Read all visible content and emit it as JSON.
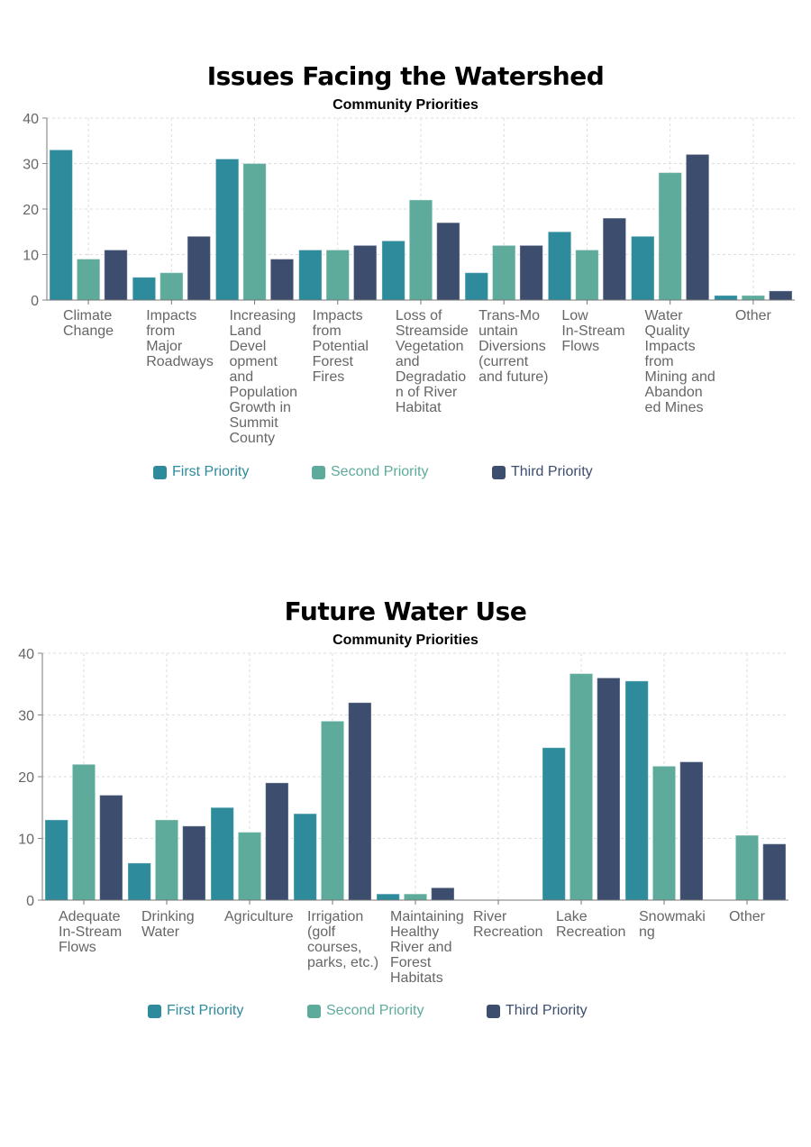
{
  "colors": {
    "first": "#2e8b9c",
    "second": "#5eab9c",
    "third": "#3c4d6e"
  },
  "chart_data": [
    {
      "type": "bar",
      "title": "Issues Facing the Watershed",
      "subtitle": "Community Priorities",
      "xlabel": "",
      "ylabel": "",
      "ylim": [
        0,
        40
      ],
      "yticks": [
        "0",
        "10",
        "20",
        "30",
        "40"
      ],
      "grid": true,
      "legend": "bottom",
      "categories": [
        "Climate\nChange",
        "Impacts\nfrom\nMajor\nRoadways",
        "Increasing\nLand\nDevel\nopment\nand\nPopulation\nGrowth in\nSummit\nCounty",
        "Impacts\nfrom\nPotential\nForest\nFires",
        "Loss of\nStreamside\nVegetation\nand\nDegradatio\nn of River\nHabitat",
        "Trans-Mo\nuntain\nDiversions\n(current\nand future)",
        "Low\nIn-Stream\nFlows",
        "Water\nQuality\nImpacts\nfrom\nMining and\nAbandon\ned Mines",
        "Other"
      ],
      "series": [
        {
          "name": "First Priority",
          "color_key": "first",
          "values": [
            33,
            5,
            31,
            11,
            13,
            6,
            15,
            14,
            1
          ]
        },
        {
          "name": "Second Priority",
          "color_key": "second",
          "values": [
            9,
            6,
            30,
            11,
            22,
            12,
            11,
            28,
            1
          ]
        },
        {
          "name": "Third Priority",
          "color_key": "third",
          "values": [
            11,
            14,
            9,
            12,
            17,
            12,
            18,
            32,
            2
          ]
        }
      ]
    },
    {
      "type": "bar",
      "title": "Future Water Use",
      "subtitle": "Community Priorities",
      "xlabel": "",
      "ylabel": "",
      "ylim": [
        0,
        40
      ],
      "yticks": [
        "0",
        "10",
        "20",
        "30",
        "40"
      ],
      "grid": true,
      "legend": "bottom",
      "categories": [
        "Adequate\nIn-Stream\nFlows",
        "Drinking\nWater",
        "Agriculture",
        "Irrigation\n(golf\ncourses,\nparks, etc.)",
        "Maintaining\nHealthy\nRiver and\nForest\nHabitats",
        "River\nRecreation",
        "Lake\nRecreation",
        "Snowmaki\nng",
        "Other"
      ],
      "series": [
        {
          "name": "First Priority",
          "color_key": "first",
          "values": [
            13,
            6,
            15,
            14,
            1,
            0,
            24.7,
            35.5,
            0
          ]
        },
        {
          "name": "Second Priority",
          "color_key": "second",
          "values": [
            22,
            13,
            11,
            29,
            1,
            0,
            36.7,
            21.7,
            10.5
          ]
        },
        {
          "name": "Third Priority",
          "color_key": "third",
          "values": [
            17,
            12,
            19,
            32,
            2,
            0,
            36,
            22.4,
            9.1
          ]
        }
      ]
    }
  ]
}
